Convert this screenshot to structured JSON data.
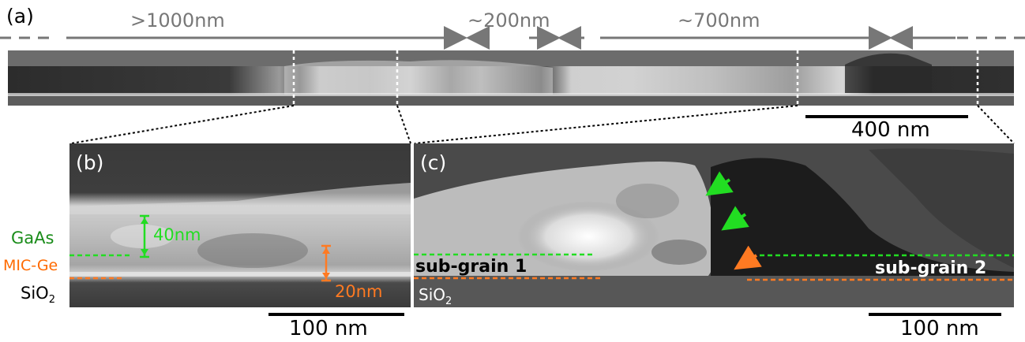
{
  "panels": {
    "a": {
      "letter": "(a)",
      "scale_label": "400 nm"
    },
    "b": {
      "letter": "(b)",
      "scale_label": "100 nm"
    },
    "c": {
      "letter": "(c)",
      "scale_label": "100 nm"
    }
  },
  "segments": [
    ">1000nm",
    "~200nm",
    "~700nm"
  ],
  "annotations_b": {
    "thickness_top": "40nm",
    "thickness_bottom": "20nm"
  },
  "layers": {
    "gaas": "GaAs",
    "mic_ge": "MIC-Ge",
    "sio2_b": "SiO",
    "sio2_c": "SiO",
    "sio2_sub": "2"
  },
  "grains": {
    "g1": "sub-grain 1",
    "g2": "sub-grain 2"
  },
  "colors": {
    "green": "#22dd22",
    "orange": "#ff7a22",
    "gaas_label": "#1a8c1a",
    "mic_label": "#ff6a00",
    "arrow_gray": "#777777"
  }
}
